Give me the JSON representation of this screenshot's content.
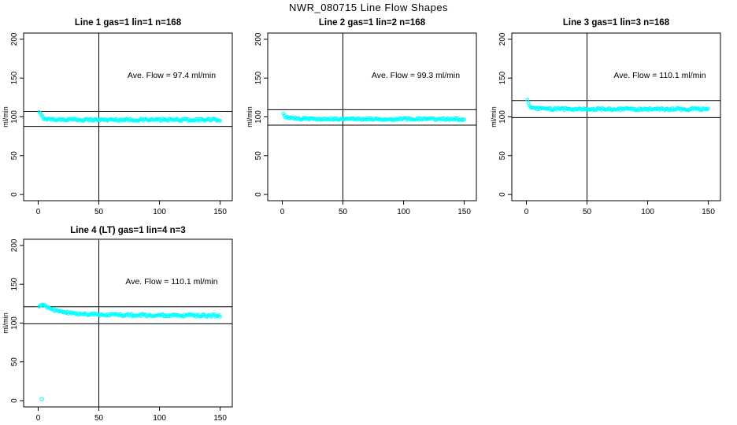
{
  "figure": {
    "title": "NWR_080715  Line Flow Shapes",
    "background": "#ffffff",
    "point_color": "#00ffff",
    "line_color": "#000000"
  },
  "chart_data": [
    {
      "type": "scatter",
      "title": "Line 1 gas=1 lin=1 n=168",
      "annotation": "Ave. Flow =  97.4  ml/min",
      "ave_flow": 97.4,
      "n": 168,
      "ylabel": "ml/min",
      "xlabel": "",
      "xticks": [
        0,
        50,
        100,
        150
      ],
      "yticks": [
        0,
        50,
        100,
        150,
        200
      ],
      "xlim": [
        -12,
        160
      ],
      "ylim": [
        -8,
        208
      ],
      "grid": false,
      "vline_x": 50,
      "hlines": [
        107.1,
        87.7
      ],
      "series_profile": [
        [
          0.9,
          105.5
        ],
        [
          1.8,
          104
        ],
        [
          2.7,
          101.5
        ],
        [
          4,
          99
        ],
        [
          6,
          97.5
        ],
        [
          10,
          96.8
        ],
        [
          20,
          96.5
        ],
        [
          40,
          96.3
        ],
        [
          80,
          96.2
        ],
        [
          150,
          96.2
        ]
      ],
      "jitter": 1.4,
      "n_points": 168,
      "outliers": []
    },
    {
      "type": "scatter",
      "title": "Line 2 gas=1 lin=2 n=168",
      "annotation": "Ave. Flow =  99.3  ml/min",
      "ave_flow": 99.3,
      "n": 168,
      "ylabel": "ml/min",
      "xlabel": "",
      "xticks": [
        0,
        50,
        100,
        150
      ],
      "yticks": [
        0,
        50,
        100,
        150,
        200
      ],
      "xlim": [
        -12,
        160
      ],
      "ylim": [
        -8,
        208
      ],
      "grid": false,
      "vline_x": 50,
      "hlines": [
        109.2,
        89.4
      ],
      "series_profile": [
        [
          0.9,
          103
        ],
        [
          1.8,
          101.5
        ],
        [
          3,
          100
        ],
        [
          5,
          98.8
        ],
        [
          8,
          98
        ],
        [
          15,
          97.6
        ],
        [
          40,
          97.3
        ],
        [
          150,
          97.1
        ]
      ],
      "jitter": 1.4,
      "n_points": 168,
      "outliers": []
    },
    {
      "type": "scatter",
      "title": "Line 3 gas=1 lin=3 n=168",
      "annotation": "Ave. Flow =  110.1  ml/min",
      "ave_flow": 110.1,
      "n": 168,
      "ylabel": "ml/min",
      "xlabel": "",
      "xticks": [
        0,
        50,
        100,
        150
      ],
      "yticks": [
        0,
        50,
        100,
        150,
        200
      ],
      "xlim": [
        -12,
        160
      ],
      "ylim": [
        -8,
        208
      ],
      "grid": false,
      "vline_x": 50,
      "hlines": [
        121.1,
        99.1
      ],
      "series_profile": [
        [
          0.9,
          122
        ],
        [
          1.8,
          117
        ],
        [
          3,
          113.5
        ],
        [
          5,
          111.5
        ],
        [
          8,
          110.6
        ],
        [
          15,
          110.2
        ],
        [
          40,
          110
        ],
        [
          150,
          109.8
        ]
      ],
      "jitter": 1.4,
      "n_points": 168,
      "outliers": []
    },
    {
      "type": "scatter",
      "title": "Line 4 (LT) gas=1 lin=4 n=3",
      "annotation": "Ave. Flow =  110.1  ml/min",
      "ave_flow": 110.1,
      "n": 3,
      "ylabel": "ml/min",
      "xlabel": "",
      "xticks": [
        0,
        50,
        100,
        150
      ],
      "yticks": [
        0,
        50,
        100,
        150,
        200
      ],
      "xlim": [
        -12,
        160
      ],
      "ylim": [
        -8,
        208
      ],
      "grid": false,
      "vline_x": 50,
      "hlines": [
        121.1,
        99.1
      ],
      "series_profile": [
        [
          0.9,
          121.5
        ],
        [
          2,
          122.5
        ],
        [
          3.5,
          122.8
        ],
        [
          5,
          122
        ],
        [
          7,
          120.5
        ],
        [
          9,
          119
        ],
        [
          12,
          117.5
        ],
        [
          15,
          116
        ],
        [
          18,
          115
        ],
        [
          22,
          114
        ],
        [
          26,
          113
        ],
        [
          30,
          112.3
        ],
        [
          35,
          111.8
        ],
        [
          40,
          111.4
        ],
        [
          45,
          111.2
        ],
        [
          50,
          110.8
        ],
        [
          55,
          111
        ],
        [
          60,
          110.6
        ],
        [
          65,
          110.9
        ],
        [
          70,
          110.3
        ],
        [
          75,
          110.6
        ],
        [
          80,
          110.2
        ],
        [
          85,
          110.5
        ],
        [
          90,
          109.9
        ],
        [
          95,
          110.3
        ],
        [
          100,
          109.8
        ],
        [
          105,
          110.2
        ],
        [
          110,
          109.7
        ],
        [
          115,
          110.1
        ],
        [
          120,
          109.6
        ],
        [
          125,
          110
        ],
        [
          130,
          109.4
        ],
        [
          135,
          109.8
        ],
        [
          140,
          109.3
        ],
        [
          145,
          109.6
        ],
        [
          150,
          109.2
        ]
      ],
      "jitter": 1.6,
      "n_points": 168,
      "outliers": [
        [
          3,
          2
        ]
      ]
    }
  ]
}
